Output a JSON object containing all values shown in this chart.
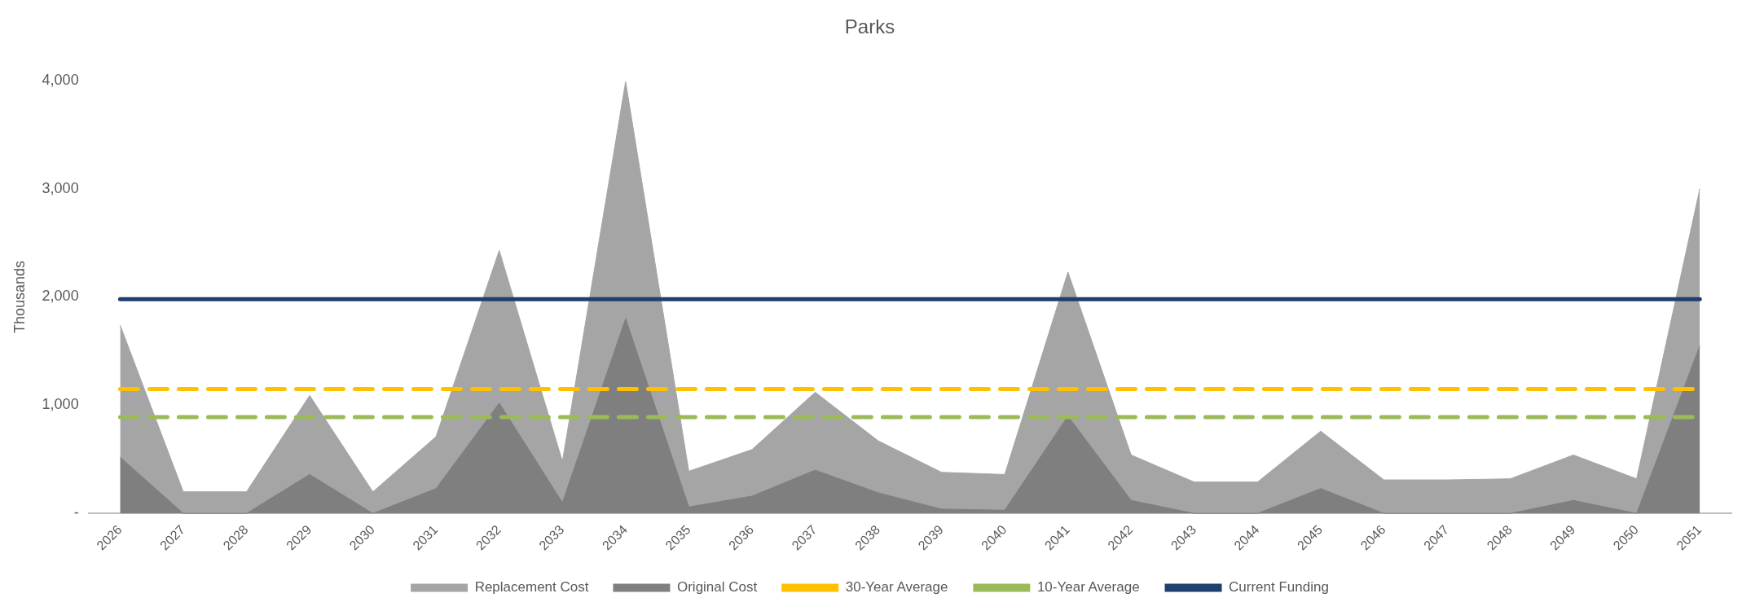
{
  "chart_data": {
    "type": "area",
    "title": "Parks",
    "ylabel": "Thousands",
    "categories": [
      "2026",
      "2027",
      "2028",
      "2029",
      "2030",
      "2031",
      "2032",
      "2033",
      "2034",
      "2035",
      "2036",
      "2037",
      "2038",
      "2039",
      "2040",
      "2041",
      "2042",
      "2043",
      "2044",
      "2045",
      "2046",
      "2047",
      "2048",
      "2049",
      "2050",
      "2051"
    ],
    "series": [
      {
        "name": "Replacement Cost",
        "color": "#a5a5a5",
        "values": [
          1740,
          200,
          200,
          1090,
          200,
          710,
          2430,
          480,
          3990,
          390,
          590,
          1120,
          670,
          380,
          360,
          2230,
          540,
          290,
          290,
          760,
          310,
          310,
          320,
          540,
          320,
          3000
        ]
      },
      {
        "name": "Original Cost",
        "color": "#7f7f7f",
        "values": [
          520,
          0,
          0,
          360,
          0,
          230,
          1020,
          100,
          1800,
          60,
          160,
          400,
          190,
          40,
          30,
          900,
          120,
          0,
          0,
          230,
          0,
          0,
          0,
          120,
          0,
          1550
        ]
      },
      {
        "name": "30-Year Average",
        "type": "line",
        "line_style": "dashed",
        "color": "#ffc000",
        "values": [
          1150,
          1150,
          1150,
          1150,
          1150,
          1150,
          1150,
          1150,
          1150,
          1150,
          1150,
          1150,
          1150,
          1150,
          1150,
          1150,
          1150,
          1150,
          1150,
          1150,
          1150,
          1150,
          1150,
          1150,
          1150,
          1150
        ]
      },
      {
        "name": "10-Year Average",
        "type": "line",
        "line_style": "dashed",
        "color": "#9bbb59",
        "values": [
          890,
          890,
          890,
          890,
          890,
          890,
          890,
          890,
          890,
          890,
          890,
          890,
          890,
          890,
          890,
          890,
          890,
          890,
          890,
          890,
          890,
          890,
          890,
          890,
          890,
          890
        ]
      },
      {
        "name": "Current Funding",
        "type": "line",
        "line_style": "solid",
        "color": "#1f3f6e",
        "values": [
          1980,
          1980,
          1980,
          1980,
          1980,
          1980,
          1980,
          1980,
          1980,
          1980,
          1980,
          1980,
          1980,
          1980,
          1980,
          1980,
          1980,
          1980,
          1980,
          1980,
          1980,
          1980,
          1980,
          1980,
          1980,
          1980
        ]
      }
    ],
    "ylim": [
      0,
      4000
    ],
    "yticks": [
      {
        "value": 0,
        "label": "-"
      },
      {
        "value": 1000,
        "label": "1,000"
      },
      {
        "value": 2000,
        "label": "2,000"
      },
      {
        "value": 3000,
        "label": "3,000"
      },
      {
        "value": 4000,
        "label": "4,000"
      }
    ],
    "grid": false,
    "legend": "bottom",
    "marker": "none"
  }
}
